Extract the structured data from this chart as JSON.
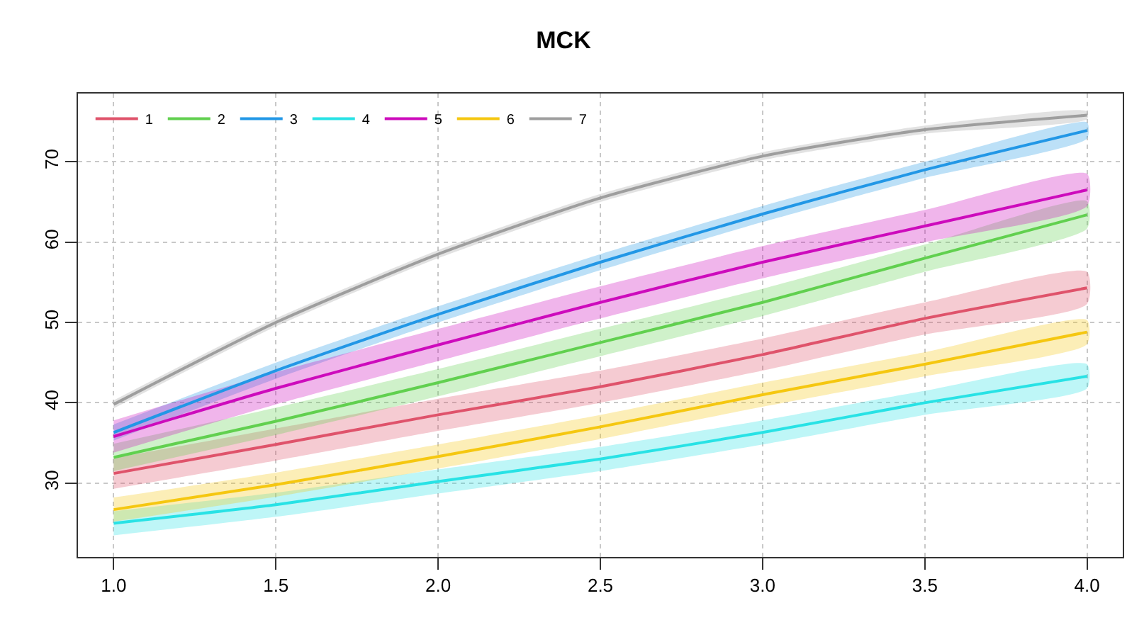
{
  "chart_data": {
    "type": "line",
    "title": "MCK",
    "x": [
      1.0,
      1.5,
      2.0,
      2.5,
      3.0,
      3.5,
      4.0
    ],
    "series": [
      {
        "name": "1",
        "color": "#df536b",
        "values": [
          31.2,
          34.8,
          38.5,
          42,
          46,
          50.5,
          54.3
        ],
        "lower": [
          29.3,
          32.8,
          36.5,
          40,
          44,
          48.5,
          52.3
        ],
        "upper": [
          33.1,
          36.8,
          40.5,
          44,
          48,
          52.5,
          56.3
        ]
      },
      {
        "name": "2",
        "color": "#61d04f",
        "values": [
          33.2,
          37.7,
          42.5,
          47.5,
          52.5,
          58,
          63.4
        ],
        "lower": [
          31.5,
          36,
          40.8,
          45.8,
          50.8,
          56.3,
          61.7
        ],
        "upper": [
          34.9,
          39.4,
          44.2,
          49.2,
          54.2,
          59.7,
          65.1
        ]
      },
      {
        "name": "3",
        "color": "#2297e6",
        "values": [
          36.3,
          44,
          51,
          57.5,
          63.5,
          69,
          73.9
        ],
        "lower": [
          35.3,
          43,
          50,
          56.5,
          62.5,
          68,
          72.9
        ],
        "upper": [
          37.3,
          45,
          52,
          58.5,
          64.5,
          70,
          74.9
        ]
      },
      {
        "name": "4",
        "color": "#28e2e5",
        "values": [
          25,
          27.3,
          30.2,
          33,
          36.3,
          40,
          43.3
        ],
        "lower": [
          23.5,
          25.8,
          28.7,
          31.5,
          34.8,
          38.5,
          41.8
        ],
        "upper": [
          26.5,
          28.8,
          31.7,
          34.5,
          37.8,
          41.5,
          44.8
        ]
      },
      {
        "name": "5",
        "color": "#cd0bbc",
        "values": [
          35.8,
          41.8,
          47.2,
          52.5,
          57.5,
          62,
          66.5
        ],
        "lower": [
          33.8,
          39.8,
          45.2,
          50.5,
          55.5,
          60,
          64.5
        ],
        "upper": [
          37.8,
          43.8,
          49.2,
          54.5,
          59.5,
          64,
          68.5
        ]
      },
      {
        "name": "6",
        "color": "#f5c710",
        "values": [
          26.7,
          29.8,
          33.3,
          37,
          41,
          44.8,
          48.8
        ],
        "lower": [
          25.2,
          28.3,
          31.8,
          35.5,
          39.5,
          43.3,
          47.3
        ],
        "upper": [
          28.2,
          31.3,
          34.8,
          38.5,
          42.5,
          46.3,
          50.3
        ]
      },
      {
        "name": "7",
        "color": "#9e9e9e",
        "values": [
          39.8,
          50,
          58.5,
          65.5,
          70.7,
          74,
          75.8
        ],
        "lower": [
          39.3,
          49.5,
          58,
          65,
          70.2,
          73.5,
          75.3
        ],
        "upper": [
          40.3,
          50.5,
          59,
          66,
          71.2,
          74.5,
          76.3
        ]
      }
    ],
    "xlim": [
      0.89,
      4.11
    ],
    "xticks": [
      {
        "value": 1,
        "label": "1.0"
      },
      {
        "value": 1.5,
        "label": "1.5"
      },
      {
        "value": 2,
        "label": "2.0"
      },
      {
        "value": 2.5,
        "label": "2.5"
      },
      {
        "value": 3,
        "label": "3.0"
      },
      {
        "value": 3.5,
        "label": "3.5"
      },
      {
        "value": 4,
        "label": "4.0"
      }
    ],
    "ylim": [
      20.8,
      78.5
    ],
    "yticks": [
      30,
      40,
      50,
      60,
      70
    ],
    "grid": true,
    "legend": "top left",
    "line_style": "solid",
    "marker": "none"
  }
}
